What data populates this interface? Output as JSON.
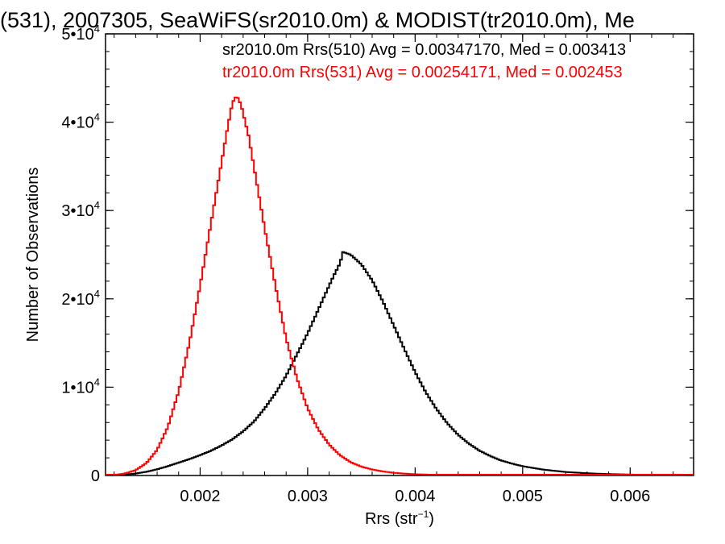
{
  "chart_data": {
    "type": "line",
    "title": "(531), 2007305, SeaWiFS(sr2010.0m) & MODIST(tr2010.0m), Me",
    "xlabel": "Rrs (str",
    "xlabel_sup": "−1",
    "xlabel_tail": ")",
    "ylabel": "Number of Observations",
    "xlim": [
      0.00112,
      0.00659
    ],
    "ylim": [
      0,
      50000
    ],
    "x_ticks": [
      {
        "value": 0.002,
        "label": "0.002"
      },
      {
        "value": 0.003,
        "label": "0.003"
      },
      {
        "value": 0.004,
        "label": "0.004"
      },
      {
        "value": 0.005,
        "label": "0.005"
      },
      {
        "value": 0.006,
        "label": "0.006"
      }
    ],
    "y_ticks": [
      {
        "value": 0,
        "mantissa": "0",
        "exp": ""
      },
      {
        "value": 10000,
        "mantissa": "1•10",
        "exp": "4"
      },
      {
        "value": 20000,
        "mantissa": "2•10",
        "exp": "4"
      },
      {
        "value": 30000,
        "mantissa": "3•10",
        "exp": "4"
      },
      {
        "value": 40000,
        "mantissa": "4•10",
        "exp": "4"
      },
      {
        "value": 50000,
        "mantissa": "5•10",
        "exp": "4"
      }
    ],
    "grid": false,
    "legend_position": "top",
    "series": [
      {
        "label": "sr2010.0m Rrs(510) Avg = 0.00347170, Med = 0.003413",
        "color": "#000000",
        "points": [
          [
            0.00112,
            0
          ],
          [
            0.0012,
            30
          ],
          [
            0.0013,
            100
          ],
          [
            0.0014,
            220
          ],
          [
            0.0015,
            420
          ],
          [
            0.0016,
            700
          ],
          [
            0.0017,
            1050
          ],
          [
            0.0018,
            1450
          ],
          [
            0.0019,
            1850
          ],
          [
            0.002,
            2300
          ],
          [
            0.0021,
            2800
          ],
          [
            0.0022,
            3400
          ],
          [
            0.0023,
            4100
          ],
          [
            0.0024,
            5000
          ],
          [
            0.0025,
            6100
          ],
          [
            0.0026,
            7600
          ],
          [
            0.0027,
            9300
          ],
          [
            0.0028,
            11300
          ],
          [
            0.0029,
            13700
          ],
          [
            0.003,
            16100
          ],
          [
            0.0031,
            18800
          ],
          [
            0.0032,
            21500
          ],
          [
            0.00325,
            22800
          ],
          [
            0.0033,
            24000
          ],
          [
            0.00333,
            25300
          ],
          [
            0.0034,
            25000
          ],
          [
            0.0035,
            23900
          ],
          [
            0.0036,
            22100
          ],
          [
            0.0037,
            19700
          ],
          [
            0.0038,
            17000
          ],
          [
            0.0039,
            14300
          ],
          [
            0.004,
            11700
          ],
          [
            0.0041,
            9400
          ],
          [
            0.0042,
            7500
          ],
          [
            0.0043,
            5900
          ],
          [
            0.0044,
            4600
          ],
          [
            0.0045,
            3600
          ],
          [
            0.0046,
            2800
          ],
          [
            0.0047,
            2200
          ],
          [
            0.0048,
            1700
          ],
          [
            0.0049,
            1350
          ],
          [
            0.005,
            1050
          ],
          [
            0.0052,
            650
          ],
          [
            0.0054,
            400
          ],
          [
            0.0056,
            250
          ],
          [
            0.0058,
            160
          ],
          [
            0.006,
            100
          ],
          [
            0.0063,
            50
          ],
          [
            0.00659,
            20
          ]
        ]
      },
      {
        "label": "tr2010.0m Rrs(531) Avg = 0.00254171, Med = 0.002453",
        "color": "#ff0000",
        "points": [
          [
            0.00112,
            0
          ],
          [
            0.0012,
            60
          ],
          [
            0.0013,
            220
          ],
          [
            0.0014,
            600
          ],
          [
            0.0015,
            1400
          ],
          [
            0.0016,
            2900
          ],
          [
            0.0017,
            5500
          ],
          [
            0.0018,
            9500
          ],
          [
            0.0019,
            15000
          ],
          [
            0.002,
            21500
          ],
          [
            0.0021,
            28500
          ],
          [
            0.0022,
            35500
          ],
          [
            0.00225,
            39000
          ],
          [
            0.0023,
            42200
          ],
          [
            0.00234,
            43000
          ],
          [
            0.00238,
            42000
          ],
          [
            0.00245,
            38500
          ],
          [
            0.0025,
            35000
          ],
          [
            0.0026,
            28000
          ],
          [
            0.0027,
            21500
          ],
          [
            0.0028,
            15500
          ],
          [
            0.0029,
            11000
          ],
          [
            0.003,
            7600
          ],
          [
            0.0031,
            5200
          ],
          [
            0.0032,
            3500
          ],
          [
            0.0033,
            2300
          ],
          [
            0.0034,
            1500
          ],
          [
            0.0035,
            1000
          ],
          [
            0.0036,
            680
          ],
          [
            0.0037,
            460
          ],
          [
            0.0038,
            310
          ],
          [
            0.0039,
            210
          ],
          [
            0.004,
            140
          ],
          [
            0.0042,
            70
          ],
          [
            0.0045,
            30
          ],
          [
            0.005,
            10
          ],
          [
            0.00659,
            0
          ]
        ]
      }
    ]
  }
}
